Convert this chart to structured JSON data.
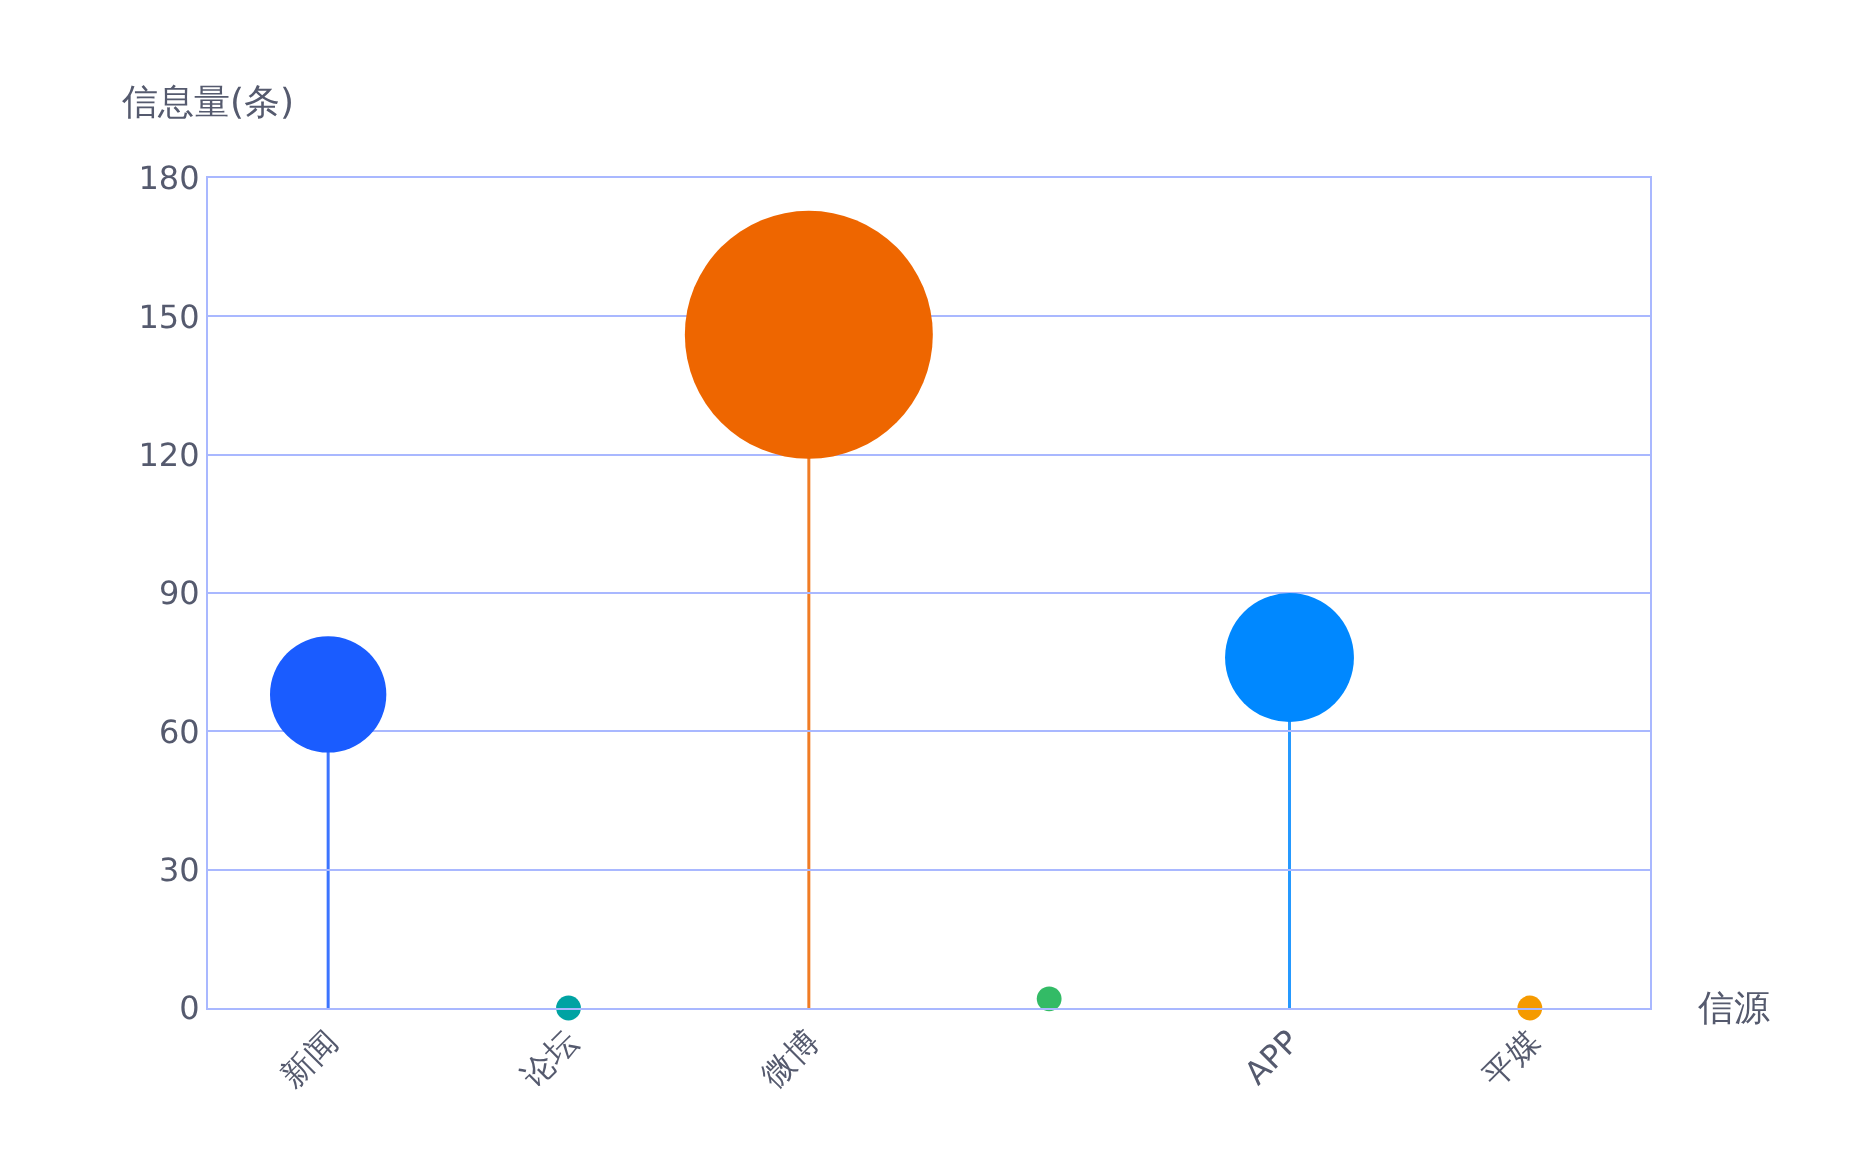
{
  "chart_data": {
    "type": "lollipop",
    "ylabel": "信息量(条)",
    "xlabel": "信源",
    "categories": [
      "新闻",
      "论坛",
      "微博",
      null,
      "APP",
      "平媒"
    ],
    "values": [
      68,
      0,
      146,
      2,
      76,
      0
    ],
    "sizes": [
      0.22,
      0.01,
      1,
      0.01,
      0.27,
      0.01
    ],
    "colors": [
      "#1a5cff",
      "#00a3a3",
      "#ee6600",
      "#33bb66",
      "#0088ff",
      "#f59a00"
    ],
    "ylim": [
      0,
      180
    ],
    "yticks": [
      0,
      30,
      60,
      90,
      120,
      150,
      180
    ],
    "grid": "y",
    "marker": "circle"
  }
}
